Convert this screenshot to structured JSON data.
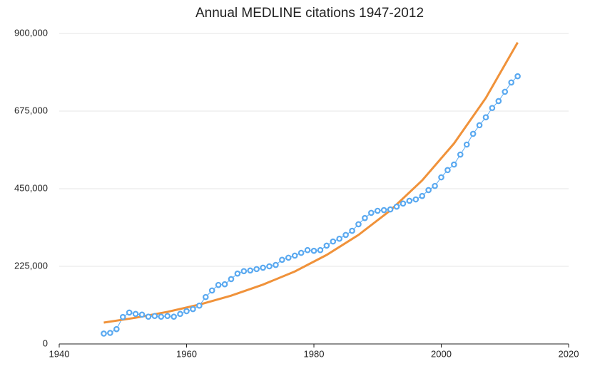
{
  "chart_data": {
    "type": "line",
    "title": "Annual MEDLINE citations 1947-2012",
    "x": [
      1947,
      1948,
      1949,
      1950,
      1951,
      1952,
      1953,
      1954,
      1955,
      1956,
      1957,
      1958,
      1959,
      1960,
      1961,
      1962,
      1963,
      1964,
      1965,
      1966,
      1967,
      1968,
      1969,
      1970,
      1971,
      1972,
      1973,
      1974,
      1975,
      1976,
      1977,
      1978,
      1979,
      1980,
      1981,
      1982,
      1983,
      1984,
      1985,
      1986,
      1987,
      1988,
      1989,
      1990,
      1991,
      1992,
      1993,
      1994,
      1995,
      1996,
      1997,
      1998,
      1999,
      2000,
      2001,
      2002,
      2003,
      2004,
      2005,
      2006,
      2007,
      2008,
      2009,
      2010,
      2011,
      2012
    ],
    "series": [
      {
        "color": "#5aa9f0",
        "values": [
          30000,
          32000,
          43000,
          78000,
          91000,
          87000,
          85000,
          79000,
          81000,
          79000,
          81000,
          79000,
          87000,
          95000,
          101000,
          111000,
          136000,
          155000,
          171000,
          173000,
          188000,
          204000,
          211000,
          213000,
          217000,
          221000,
          225000,
          229000,
          244000,
          250000,
          256000,
          264000,
          272000,
          270000,
          272000,
          285000,
          297000,
          305000,
          316000,
          328000,
          347000,
          365000,
          380000,
          386000,
          388000,
          390000,
          398000,
          407000,
          415000,
          419000,
          429000,
          446000,
          458000,
          483000,
          504000,
          520000,
          549000,
          578000,
          609000,
          634000,
          657000,
          684000,
          704000,
          731000,
          758000,
          776000
        ]
      },
      {
        "color": "#f0923a",
        "x": [
          1947,
          1952,
          1957,
          1962,
          1967,
          1972,
          1977,
          1982,
          1987,
          1992,
          1997,
          2002,
          2007,
          2012
        ],
        "values": [
          62000,
          76000,
          93000,
          114000,
          140000,
          172000,
          210000,
          258000,
          316000,
          387000,
          474000,
          581000,
          713000,
          874000
        ]
      }
    ],
    "xlim": [
      1940,
      2020
    ],
    "xticks": [
      1940,
      1960,
      1980,
      2000,
      2020
    ],
    "ylim": [
      0,
      900000
    ],
    "yticks": [
      0,
      {
        "value": 225000,
        "label": "225,000"
      },
      {
        "value": 450000,
        "label": "450,000"
      },
      {
        "value": 675000,
        "label": "675,000"
      },
      {
        "value": 900000,
        "label": "900,000"
      }
    ],
    "grid": true
  }
}
